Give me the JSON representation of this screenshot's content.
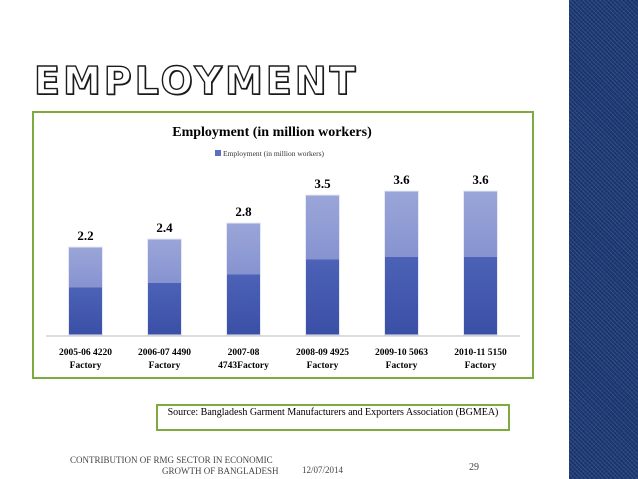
{
  "slide": {
    "title": "EMPLOYMENT",
    "source": "Source: Bangladesh Garment Manufacturers and Exporters Association (BGMEA)",
    "footer_line1": "CONTRIBUTION OF RMG SECTOR IN ECONOMIC",
    "footer_line2": "GROWTH OF BANGLADESH",
    "date": "12/07/2014",
    "page": "29"
  },
  "colors": {
    "bar_top": "#9aa6d8",
    "bar_bottom": "#3a4fa6",
    "frame": "#7dab3f",
    "stripe": "#1d3a78"
  },
  "chart_data": {
    "type": "bar",
    "title": "Employment (in million workers)",
    "legend": [
      "Employment (in million workers)"
    ],
    "legend_position": "top",
    "categories": [
      [
        "2005-06  4220",
        "Factory"
      ],
      [
        "2006-07  4490",
        "Factory"
      ],
      [
        "2007-08",
        "4743Factory"
      ],
      [
        "2008-09  4925",
        "Factory"
      ],
      [
        "2009-10  5063",
        "Factory"
      ],
      [
        "2010-11  5150",
        "Factory"
      ]
    ],
    "series": [
      {
        "name": "Employment (in million workers)",
        "values": [
          2.2,
          2.4,
          2.8,
          3.5,
          3.6,
          3.6
        ]
      }
    ],
    "data_labels": [
      "2.2",
      "2.4",
      "2.8",
      "3.5",
      "3.6",
      "3.6"
    ],
    "ylim": [
      0,
      3.6
    ],
    "grid": false
  }
}
